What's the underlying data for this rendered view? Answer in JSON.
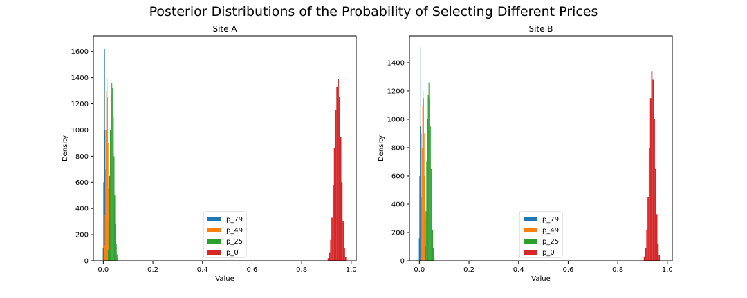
{
  "figure": {
    "suptitle": "Posterior Distributions of the Probability of Selecting Different Prices"
  },
  "colors": {
    "p_79": "#1f77b4",
    "p_49": "#ff7f0e",
    "p_25": "#2ca02c",
    "p_0": "#d62728"
  },
  "chart_data": [
    {
      "type": "histogram",
      "title": "Site A",
      "xlabel": "Value",
      "ylabel": "Density",
      "xlim": [
        -0.04,
        1.02
      ],
      "ylim": [
        0,
        1720
      ],
      "xticks": [
        0.0,
        0.2,
        0.4,
        0.6,
        0.8,
        1.0
      ],
      "xtick_labels": [
        "0.0",
        "0.2",
        "0.4",
        "0.6",
        "0.8",
        "1.0"
      ],
      "yticks": [
        0,
        200,
        400,
        600,
        800,
        1000,
        1200,
        1400,
        1600
      ],
      "ytick_labels": [
        "0",
        "200",
        "400",
        "600",
        "800",
        "1000",
        "1200",
        "1400",
        "1600"
      ],
      "legend_position": "lower-center",
      "series": [
        {
          "name": "p_79",
          "color": "#1f77b4",
          "bins": [
            [
              -0.002,
              0.0,
              100
            ],
            [
              0.0,
              0.002,
              600
            ],
            [
              0.002,
              0.004,
              1270
            ],
            [
              0.004,
              0.006,
              1620
            ],
            [
              0.006,
              0.008,
              1000
            ],
            [
              0.008,
              0.01,
              350
            ],
            [
              0.01,
              0.012,
              80
            ]
          ]
        },
        {
          "name": "p_49",
          "color": "#ff7f0e",
          "bins": [
            [
              0.004,
              0.006,
              120
            ],
            [
              0.006,
              0.008,
              350
            ],
            [
              0.008,
              0.01,
              700
            ],
            [
              0.01,
              0.012,
              1000
            ],
            [
              0.012,
              0.014,
              1300
            ],
            [
              0.014,
              0.016,
              1400
            ],
            [
              0.016,
              0.018,
              1250
            ],
            [
              0.018,
              0.02,
              900
            ],
            [
              0.02,
              0.022,
              550
            ],
            [
              0.022,
              0.024,
              250
            ],
            [
              0.024,
              0.026,
              90
            ]
          ]
        },
        {
          "name": "p_25",
          "color": "#2ca02c",
          "bins": [
            [
              0.018,
              0.021,
              80
            ],
            [
              0.021,
              0.024,
              300
            ],
            [
              0.024,
              0.027,
              650
            ],
            [
              0.027,
              0.03,
              1000
            ],
            [
              0.03,
              0.033,
              1250
            ],
            [
              0.033,
              0.036,
              1360
            ],
            [
              0.036,
              0.039,
              1320
            ],
            [
              0.039,
              0.042,
              1100
            ],
            [
              0.042,
              0.045,
              800
            ],
            [
              0.045,
              0.048,
              500
            ],
            [
              0.048,
              0.051,
              280
            ],
            [
              0.051,
              0.054,
              130
            ],
            [
              0.054,
              0.057,
              50
            ],
            [
              0.057,
              0.06,
              20
            ]
          ]
        },
        {
          "name": "p_0",
          "color": "#d62728",
          "bins": [
            [
              0.905,
              0.91,
              20
            ],
            [
              0.91,
              0.915,
              60
            ],
            [
              0.915,
              0.92,
              160
            ],
            [
              0.92,
              0.925,
              330
            ],
            [
              0.925,
              0.93,
              580
            ],
            [
              0.93,
              0.935,
              860
            ],
            [
              0.935,
              0.94,
              1150
            ],
            [
              0.94,
              0.945,
              1330
            ],
            [
              0.945,
              0.95,
              1390
            ],
            [
              0.95,
              0.955,
              1250
            ],
            [
              0.955,
              0.96,
              950
            ],
            [
              0.96,
              0.965,
              600
            ],
            [
              0.965,
              0.97,
              300
            ],
            [
              0.97,
              0.975,
              100
            ],
            [
              0.975,
              0.98,
              30
            ]
          ]
        }
      ]
    },
    {
      "type": "histogram",
      "title": "Site B",
      "xlabel": "Value",
      "ylabel": "Density",
      "xlim": [
        -0.04,
        1.02
      ],
      "ylim": [
        0,
        1590
      ],
      "xticks": [
        0.0,
        0.2,
        0.4,
        0.6,
        0.8,
        1.0
      ],
      "xtick_labels": [
        "0.0",
        "0.2",
        "0.4",
        "0.6",
        "0.8",
        "1.0"
      ],
      "yticks": [
        0,
        200,
        400,
        600,
        800,
        1000,
        1200,
        1400
      ],
      "ytick_labels": [
        "0",
        "200",
        "400",
        "600",
        "800",
        "1000",
        "1200",
        "1400"
      ],
      "legend_position": "lower-center",
      "series": [
        {
          "name": "p_79",
          "color": "#1f77b4",
          "bins": [
            [
              -0.002,
              0.0,
              160
            ],
            [
              0.0,
              0.002,
              600
            ],
            [
              0.002,
              0.004,
              950
            ],
            [
              0.004,
              0.006,
              1510
            ],
            [
              0.006,
              0.008,
              900
            ],
            [
              0.008,
              0.01,
              400
            ],
            [
              0.01,
              0.012,
              100
            ]
          ]
        },
        {
          "name": "p_49",
          "color": "#ff7f0e",
          "bins": [
            [
              0.006,
              0.008,
              150
            ],
            [
              0.008,
              0.01,
              450
            ],
            [
              0.01,
              0.012,
              800
            ],
            [
              0.012,
              0.014,
              1100
            ],
            [
              0.014,
              0.016,
              1200
            ],
            [
              0.016,
              0.018,
              1150
            ],
            [
              0.018,
              0.02,
              900
            ],
            [
              0.02,
              0.022,
              600
            ],
            [
              0.022,
              0.024,
              300
            ],
            [
              0.024,
              0.026,
              100
            ]
          ]
        },
        {
          "name": "p_25",
          "color": "#2ca02c",
          "bins": [
            [
              0.022,
              0.025,
              100
            ],
            [
              0.025,
              0.028,
              350
            ],
            [
              0.028,
              0.031,
              700
            ],
            [
              0.031,
              0.034,
              1000
            ],
            [
              0.034,
              0.037,
              1170
            ],
            [
              0.037,
              0.04,
              1260
            ],
            [
              0.04,
              0.043,
              1150
            ],
            [
              0.043,
              0.046,
              950
            ],
            [
              0.046,
              0.049,
              650
            ],
            [
              0.049,
              0.052,
              420
            ],
            [
              0.052,
              0.055,
              220
            ],
            [
              0.055,
              0.058,
              90
            ],
            [
              0.058,
              0.061,
              30
            ]
          ]
        },
        {
          "name": "p_0",
          "color": "#d62728",
          "bins": [
            [
              0.905,
              0.91,
              30
            ],
            [
              0.91,
              0.915,
              90
            ],
            [
              0.915,
              0.92,
              220
            ],
            [
              0.92,
              0.925,
              450
            ],
            [
              0.925,
              0.93,
              800
            ],
            [
              0.93,
              0.935,
              1150
            ],
            [
              0.935,
              0.94,
              1340
            ],
            [
              0.94,
              0.945,
              1280
            ],
            [
              0.945,
              0.95,
              1000
            ],
            [
              0.95,
              0.955,
              650
            ],
            [
              0.955,
              0.96,
              330
            ],
            [
              0.96,
              0.965,
              120
            ],
            [
              0.965,
              0.97,
              40
            ]
          ]
        }
      ]
    }
  ]
}
